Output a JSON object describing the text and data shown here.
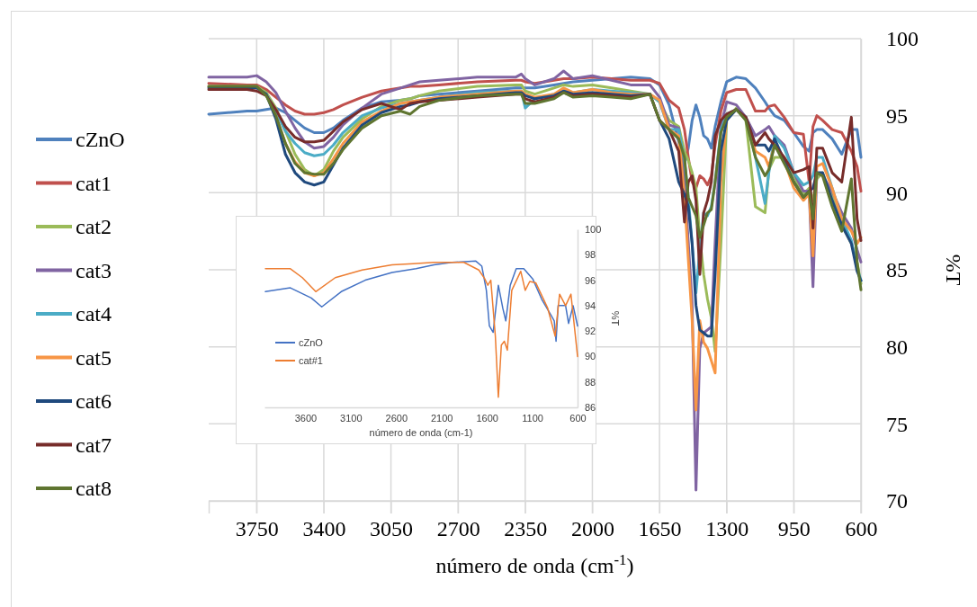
{
  "chart_data": [
    {
      "type": "line",
      "xlabel": "número de onda (cm$^{-1}$)",
      "ylabel": "%T",
      "xlim": [
        4000,
        600
      ],
      "ylim": [
        70,
        100
      ],
      "xticks": [
        3750,
        3400,
        3050,
        2700,
        2350,
        2000,
        1650,
        1300,
        950,
        600
      ],
      "yticks": [
        70,
        75,
        80,
        85,
        90,
        95,
        100
      ],
      "grid": true,
      "legend": "left",
      "x": [
        4000,
        3800,
        3750,
        3700,
        3650,
        3600,
        3550,
        3500,
        3450,
        3400,
        3350,
        3300,
        3200,
        3100,
        3000,
        2950,
        2900,
        2800,
        2600,
        2400,
        2370,
        2350,
        2300,
        2200,
        2150,
        2100,
        2000,
        1900,
        1800,
        1700,
        1650,
        1600,
        1550,
        1520,
        1500,
        1480,
        1460,
        1440,
        1420,
        1400,
        1380,
        1360,
        1330,
        1300,
        1250,
        1200,
        1150,
        1100,
        1080,
        1050,
        1000,
        950,
        900,
        870,
        850,
        830,
        800,
        750,
        700,
        650,
        620,
        600
      ],
      "series": [
        {
          "name": "cZnO",
          "color": "#4f81bd",
          "values": [
            95.1,
            95.3,
            95.3,
            95.4,
            95.5,
            95.2,
            94.7,
            94.2,
            93.9,
            93.9,
            94.2,
            94.7,
            95.5,
            95.9,
            96.0,
            96.1,
            96.3,
            96.4,
            96.6,
            96.8,
            96.8,
            96.8,
            96.8,
            97.0,
            97.1,
            97.2,
            97.3,
            97.4,
            97.5,
            97.4,
            97.0,
            95.7,
            93.3,
            91.9,
            92.9,
            94.7,
            95.7,
            94.9,
            93.7,
            93.5,
            92.9,
            94.3,
            95.9,
            97.2,
            97.5,
            97.4,
            96.8,
            95.9,
            95.5,
            95.0,
            94.7,
            93.9,
            93.0,
            92.7,
            93.9,
            94.1,
            94.1,
            93.5,
            92.5,
            94.1,
            94.1,
            92.3
          ]
        },
        {
          "name": "cat1",
          "color": "#c0504d",
          "values": [
            97.1,
            97.0,
            97.0,
            96.7,
            96.2,
            95.7,
            95.3,
            95.1,
            95.1,
            95.2,
            95.4,
            95.7,
            96.2,
            96.6,
            96.8,
            96.9,
            96.9,
            97.0,
            97.2,
            97.3,
            97.3,
            97.2,
            97.1,
            97.3,
            97.4,
            97.4,
            97.5,
            97.4,
            97.3,
            97.3,
            97.1,
            96.0,
            95.5,
            94.1,
            92.3,
            90.7,
            90.3,
            91.1,
            90.9,
            90.5,
            91.1,
            93.1,
            95.3,
            96.5,
            96.7,
            96.7,
            95.3,
            95.3,
            95.6,
            95.7,
            94.9,
            93.9,
            93.8,
            90.7,
            94.3,
            95.0,
            94.7,
            94.1,
            93.9,
            92.7,
            91.7,
            90.1
          ]
        },
        {
          "name": "cat2",
          "color": "#9bbb59",
          "values": [
            96.9,
            96.9,
            96.9,
            96.5,
            95.5,
            94.0,
            92.5,
            91.5,
            91.1,
            91.5,
            92.7,
            93.6,
            94.8,
            95.6,
            96.0,
            96.1,
            96.3,
            96.6,
            96.9,
            97.0,
            97.0,
            96.6,
            96.4,
            96.8,
            97.0,
            96.9,
            97.0,
            96.8,
            96.6,
            96.4,
            95.9,
            94.7,
            94.3,
            92.7,
            92.1,
            91.3,
            90.3,
            87.1,
            84.7,
            83.1,
            81.9,
            79.7,
            86.7,
            94.7,
            95.5,
            94.7,
            89.1,
            88.7,
            91.5,
            92.3,
            92.3,
            91.1,
            89.9,
            90.3,
            89.5,
            90.9,
            91.3,
            89.7,
            87.9,
            86.7,
            85.5,
            84.1
          ]
        },
        {
          "name": "cat3",
          "color": "#8064a2",
          "values": [
            97.5,
            97.5,
            97.6,
            97.2,
            96.5,
            95.3,
            94.2,
            93.3,
            92.9,
            93.0,
            93.6,
            94.4,
            95.5,
            96.4,
            96.8,
            97.0,
            97.2,
            97.3,
            97.5,
            97.5,
            97.7,
            97.4,
            97.0,
            97.4,
            97.9,
            97.4,
            97.6,
            97.3,
            97.0,
            97.0,
            96.2,
            94.4,
            94.2,
            90.8,
            86.8,
            82.8,
            70.7,
            79.9,
            80.9,
            81.1,
            81.3,
            86.8,
            94.3,
            95.9,
            95.7,
            94.9,
            93.7,
            94.1,
            94.3,
            93.7,
            93.1,
            91.3,
            90.1,
            90.1,
            83.9,
            91.3,
            91.1,
            90.1,
            88.7,
            87.7,
            86.3,
            85.5
          ]
        },
        {
          "name": "cat4",
          "color": "#4bacc6",
          "values": [
            null,
            null,
            null,
            96.4,
            95.3,
            94.0,
            93.2,
            92.6,
            92.4,
            92.5,
            93.1,
            93.9,
            95.0,
            95.5,
            95.8,
            95.9,
            96.0,
            96.2,
            96.5,
            96.6,
            96.6,
            95.5,
            96.1,
            96.4,
            96.6,
            96.5,
            96.7,
            96.6,
            96.5,
            96.4,
            95.9,
            94.1,
            94.1,
            92.1,
            89.7,
            86.7,
            83.5,
            86.3,
            88.7,
            88.5,
            89.1,
            90.7,
            94.1,
            95.1,
            95.4,
            94.9,
            92.3,
            89.3,
            91.3,
            93.7,
            92.9,
            91.3,
            90.5,
            90.7,
            91.1,
            92.3,
            92.3,
            90.3,
            88.3,
            86.9,
            85.1,
            84.3
          ]
        },
        {
          "name": "cat5",
          "color": "#f79646",
          "values": [
            null,
            null,
            null,
            null,
            95.0,
            93.2,
            92.0,
            91.3,
            91.1,
            91.3,
            92.2,
            93.2,
            94.6,
            95.3,
            95.8,
            95.9,
            96.0,
            96.2,
            96.4,
            96.6,
            96.6,
            96.4,
            96.2,
            96.4,
            96.8,
            96.5,
            96.7,
            96.5,
            96.4,
            96.4,
            96.0,
            94.1,
            93.7,
            89.7,
            85.7,
            81.7,
            75.9,
            81.7,
            80.3,
            79.9,
            79.1,
            78.3,
            90.7,
            94.9,
            95.4,
            94.9,
            92.7,
            92.3,
            91.7,
            93.1,
            92.1,
            90.3,
            89.5,
            89.9,
            85.9,
            91.7,
            91.9,
            90.3,
            88.3,
            87.5,
            86.7,
            87.1
          ]
        },
        {
          "name": "cat6",
          "color": "#1f497d",
          "values": [
            96.8,
            96.8,
            96.8,
            96.4,
            94.8,
            92.5,
            91.3,
            90.7,
            90.5,
            90.7,
            91.8,
            92.9,
            94.4,
            95.2,
            95.6,
            95.7,
            95.9,
            96.1,
            96.3,
            96.5,
            96.5,
            96.3,
            96.1,
            96.3,
            96.6,
            96.4,
            96.5,
            96.4,
            96.3,
            96.4,
            94.7,
            93.5,
            90.7,
            89.9,
            89.1,
            86.7,
            82.7,
            81.1,
            80.9,
            80.7,
            80.7,
            84.7,
            92.7,
            94.7,
            95.4,
            94.9,
            93.1,
            93.1,
            92.7,
            93.5,
            92.1,
            90.7,
            89.7,
            90.1,
            90.3,
            91.3,
            91.3,
            89.5,
            87.9,
            86.7,
            84.9,
            84.3
          ]
        },
        {
          "name": "cat7",
          "color": "#772c2a",
          "values": [
            96.7,
            96.7,
            96.6,
            96.3,
            95.4,
            94.3,
            93.6,
            93.3,
            93.3,
            93.4,
            94.0,
            94.6,
            95.4,
            95.8,
            95.4,
            95.8,
            95.9,
            96.0,
            96.2,
            96.4,
            96.4,
            96.1,
            95.9,
            96.2,
            96.5,
            96.3,
            96.4,
            96.3,
            96.2,
            96.4,
            94.7,
            94.1,
            92.7,
            88.1,
            90.7,
            91.1,
            89.5,
            84.7,
            88.7,
            89.5,
            90.7,
            93.7,
            94.7,
            95.1,
            95.4,
            94.9,
            93.1,
            93.9,
            93.5,
            93.1,
            92.3,
            91.3,
            91.5,
            91.7,
            87.7,
            92.9,
            92.9,
            91.3,
            90.7,
            94.9,
            88.3,
            86.9
          ]
        },
        {
          "name": "cat8",
          "color": "#5f7530",
          "values": [
            96.9,
            96.9,
            96.9,
            96.3,
            95.0,
            93.2,
            91.9,
            91.3,
            91.2,
            91.2,
            91.9,
            92.8,
            94.2,
            95.0,
            95.3,
            95.1,
            95.6,
            96.0,
            96.3,
            96.4,
            96.4,
            95.8,
            95.8,
            96.1,
            96.5,
            96.2,
            96.3,
            96.2,
            96.1,
            96.4,
            94.7,
            94.1,
            93.5,
            92.3,
            89.7,
            89.1,
            88.5,
            87.1,
            87.9,
            88.7,
            88.9,
            90.7,
            93.9,
            94.9,
            95.4,
            94.7,
            92.3,
            91.1,
            91.5,
            93.1,
            91.9,
            90.7,
            89.7,
            90.1,
            88.3,
            91.3,
            91.1,
            89.1,
            87.5,
            90.9,
            85.5,
            83.7
          ]
        }
      ]
    },
    {
      "type": "line",
      "xlabel": "número de onda (cm-1)",
      "ylabel": "%T",
      "xlim": [
        4050,
        600
      ],
      "ylim": [
        86,
        100
      ],
      "xticks": [
        3600,
        3100,
        2600,
        2100,
        1600,
        1100,
        600
      ],
      "yticks": [
        86,
        88,
        90,
        92,
        94,
        96,
        98,
        100
      ],
      "legend": "left",
      "series": [
        {
          "name": "cZnO",
          "color": "#4472c4",
          "x": [
            4040,
            3765,
            3534,
            3419,
            3204,
            2940,
            2644,
            2380,
            2182,
            1984,
            1721,
            1655,
            1605,
            1572,
            1530,
            1473,
            1424,
            1391,
            1342,
            1276,
            1193,
            1094,
            995,
            896,
            857,
            837,
            814,
            732,
            699,
            649,
            600
          ],
          "values": [
            95.1,
            95.4,
            94.6,
            93.9,
            95.1,
            96.0,
            96.6,
            96.9,
            97.2,
            97.4,
            97.5,
            97.1,
            95.2,
            92.4,
            91.9,
            95.6,
            93.8,
            92.8,
            95.6,
            96.9,
            96.9,
            96.1,
            94.5,
            93.3,
            92.8,
            91.2,
            94.0,
            94.0,
            92.6,
            94.0,
            92.4
          ]
        },
        {
          "name": "cat#1",
          "color": "#ed7d31",
          "x": [
            4040,
            3765,
            3633,
            3485,
            3270,
            2974,
            2644,
            2413,
            2182,
            1853,
            1688,
            1622,
            1589,
            1556,
            1506,
            1473,
            1440,
            1407,
            1374,
            1325,
            1226,
            1177,
            1127,
            1061,
            929,
            847,
            798,
            732,
            673,
            649,
            600
          ],
          "values": [
            96.9,
            96.9,
            96.2,
            95.1,
            96.2,
            96.8,
            97.2,
            97.3,
            97.4,
            97.4,
            96.8,
            96.1,
            95.6,
            96.0,
            91.6,
            86.8,
            90.9,
            91.2,
            90.5,
            95.2,
            96.7,
            95.2,
            95.9,
            95.8,
            93.8,
            91.6,
            94.9,
            94.0,
            94.9,
            93.3,
            90.0
          ]
        }
      ]
    }
  ]
}
